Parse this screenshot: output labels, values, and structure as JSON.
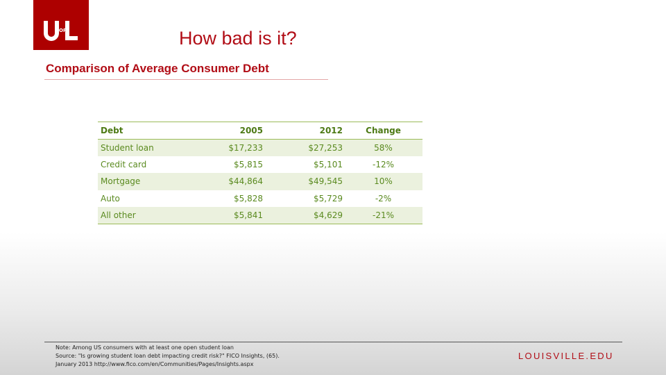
{
  "logo": {
    "text": "UofL"
  },
  "title": "How bad is it?",
  "subtitle": "Comparison of Average Consumer Debt",
  "table": {
    "headers": [
      "Debt",
      "2005",
      "2012",
      "Change"
    ],
    "rows": [
      [
        "Student  loan",
        "$17,233",
        "$27,253",
        "58%"
      ],
      [
        "Credit card",
        "$5,815",
        "$5,101",
        "-12%"
      ],
      [
        "Mortgage",
        "$44,864",
        "$49,545",
        "10%"
      ],
      [
        "Auto",
        "$5,828",
        "$5,729",
        "-2%"
      ],
      [
        "All other",
        "$5,841",
        "$4,629",
        "-21%"
      ]
    ]
  },
  "footer": {
    "note": "Note: Among US consumers with at least one open student loan",
    "source": "Source: \"Is growing student loan debt impacting credit risk?\" FICO Insights, (65).",
    "date_url": "January 2013 http://www.fico.com/en/Communities/Pages/Insights.aspx",
    "site": "LOUISVILLE.EDU"
  },
  "colors": {
    "brand_red": "#ad0000",
    "title_red": "#b10d16",
    "table_green": "#5a8a1f",
    "band_green": "#ebf1de"
  }
}
